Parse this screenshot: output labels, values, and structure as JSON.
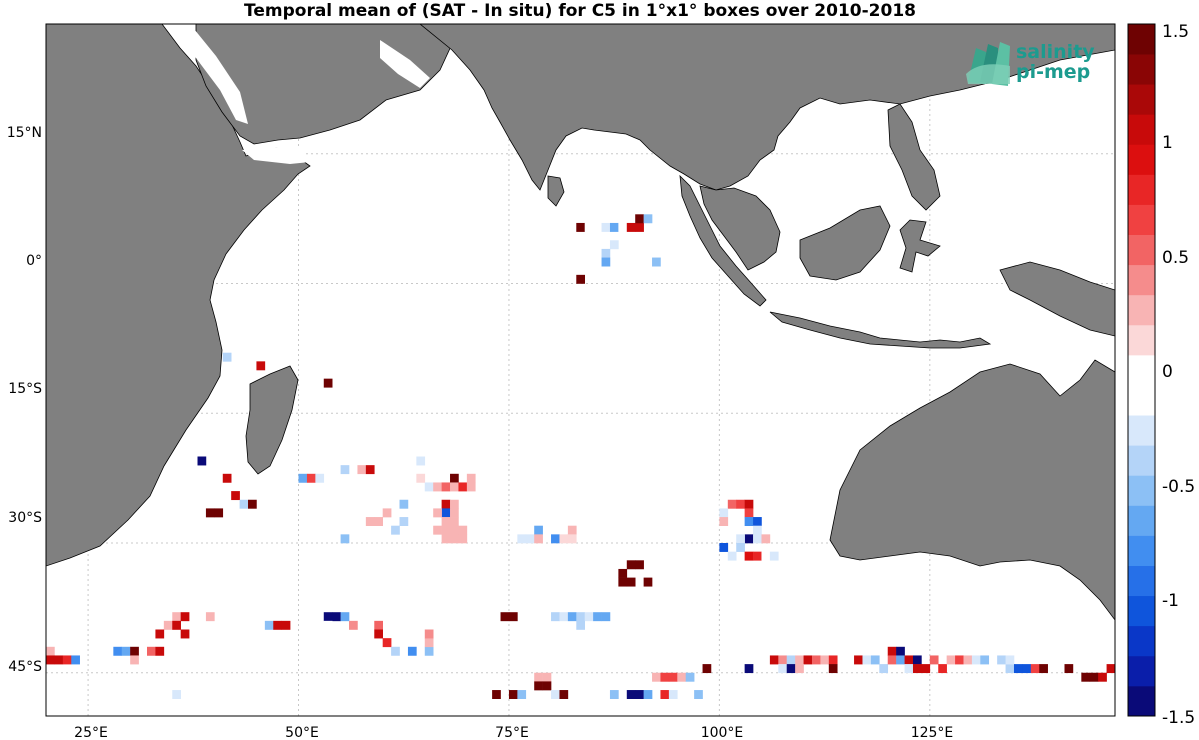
{
  "title": "Temporal mean of (SAT - In situ) for C5 in 1°x1° boxes over 2010-2018",
  "logo": {
    "line1": "salinity",
    "line2": "pi-mep"
  },
  "lon_ticks": [
    "25°E",
    "50°E",
    "75°E",
    "100°E",
    "125°E"
  ],
  "lat_ticks": [
    "15°N",
    "0°",
    "15°S",
    "30°S",
    "45°S"
  ],
  "colorbar": {
    "ticks": [
      "1.5",
      "1",
      "0.5",
      "0",
      "-0.5",
      "-1",
      "-1.5"
    ],
    "range": [
      -1.5,
      1.5
    ],
    "colors": [
      "#0a0a78",
      "#0a1eaa",
      "#0a37c8",
      "#0f55dc",
      "#2670e8",
      "#418ef0",
      "#64a8f2",
      "#8cc0f5",
      "#b4d4f8",
      "#d8e8fb",
      "#ffffff",
      "#ffffff",
      "#fbd8d8",
      "#f8b4b4",
      "#f58c8c",
      "#f26464",
      "#f04141",
      "#e82626",
      "#dc0f0f",
      "#c80a0a",
      "#aa0808",
      "#8a0505",
      "#6e0202"
    ]
  },
  "colors": {
    "land": "#808080",
    "coast": "#000000",
    "grid": "#c8c8c8"
  },
  "chart_data": {
    "type": "heatmap",
    "title": "Temporal mean of (SAT - In situ) for C5 in 1°x1° boxes over 2010-2018",
    "x_range": [
      20,
      147
    ],
    "y_range": [
      -50,
      30
    ],
    "grid": true,
    "cells": [
      [
        83,
        6,
        1.5
      ],
      [
        84,
        6,
        0.05
      ],
      [
        85,
        6,
        -0.1
      ],
      [
        86,
        6,
        -0.2
      ],
      [
        87,
        6,
        -0.7
      ],
      [
        88,
        6,
        -0.05
      ],
      [
        89,
        6,
        1.0
      ],
      [
        90,
        6,
        1.0
      ],
      [
        90,
        7,
        1.5
      ],
      [
        91,
        7,
        -0.5
      ],
      [
        87,
        4,
        -0.3
      ],
      [
        86,
        3,
        -0.4
      ],
      [
        86,
        2,
        -0.6
      ],
      [
        92,
        2,
        -0.5
      ],
      [
        83,
        0,
        1.5
      ],
      [
        41,
        -9,
        -0.4
      ],
      [
        45,
        -10,
        1.0
      ],
      [
        53,
        -12,
        1.5
      ],
      [
        38,
        -21,
        -1.5
      ],
      [
        41,
        -23,
        1.0
      ],
      [
        42,
        -25,
        1.0
      ],
      [
        39,
        -27,
        1.5
      ],
      [
        40,
        -27,
        1.5
      ],
      [
        43,
        -26,
        -0.4
      ],
      [
        44,
        -26,
        1.5
      ],
      [
        48,
        -23,
        -0.1
      ],
      [
        50,
        -23,
        -0.6
      ],
      [
        51,
        -23,
        0.7
      ],
      [
        52,
        -23,
        -0.2
      ],
      [
        55,
        -22,
        -0.4
      ],
      [
        57,
        -22,
        0.3
      ],
      [
        58,
        -22,
        1.0
      ],
      [
        60,
        -20,
        -0.1
      ],
      [
        61,
        -20,
        -0.1
      ],
      [
        64,
        -20,
        -0.1
      ],
      [
        64,
        -21,
        -0.2
      ],
      [
        64,
        -23,
        0.1
      ],
      [
        65,
        -24,
        -0.3
      ],
      [
        66,
        -24,
        0.3
      ],
      [
        67,
        -24,
        0.5
      ],
      [
        68,
        -23,
        1.5
      ],
      [
        68,
        -24,
        0.3
      ],
      [
        69,
        -24,
        0.8
      ],
      [
        70,
        -23,
        0.2
      ],
      [
        70,
        -24,
        0.2
      ],
      [
        67,
        -26,
        1.0
      ],
      [
        68,
        -26,
        0.3
      ],
      [
        67,
        -27,
        -1.0
      ],
      [
        66,
        -27,
        0.2
      ],
      [
        68,
        -27,
        0.2
      ],
      [
        67,
        -28,
        0.3
      ],
      [
        68,
        -28,
        0.3
      ],
      [
        66,
        -29,
        0.2
      ],
      [
        67,
        -29,
        0.2
      ],
      [
        68,
        -29,
        0.3
      ],
      [
        69,
        -29,
        0.2
      ],
      [
        62,
        -26,
        -0.5
      ],
      [
        58,
        -28,
        0.2
      ],
      [
        59,
        -28,
        0.2
      ],
      [
        60,
        -27,
        0.3
      ],
      [
        61,
        -29,
        -0.4
      ],
      [
        62,
        -28,
        -0.4
      ],
      [
        67,
        -30,
        0.2
      ],
      [
        68,
        -30,
        0.3
      ],
      [
        69,
        -30,
        0.3
      ],
      [
        55,
        -30,
        -0.5
      ],
      [
        76,
        -30,
        -0.2
      ],
      [
        77,
        -30,
        -0.2
      ],
      [
        78,
        -29,
        -0.6
      ],
      [
        78,
        -30,
        0.3
      ],
      [
        80,
        -30,
        -0.8
      ],
      [
        81,
        -30,
        0.1
      ],
      [
        82,
        -29,
        0.3
      ],
      [
        82,
        -30,
        0.1
      ],
      [
        89,
        -33,
        1.5
      ],
      [
        90,
        -33,
        1.5
      ],
      [
        88,
        -34,
        1.5
      ],
      [
        88,
        -35,
        1.5
      ],
      [
        89,
        -35,
        1.5
      ],
      [
        91,
        -35,
        1.5
      ],
      [
        100,
        -26,
        -0.1
      ],
      [
        101,
        -26,
        0.5
      ],
      [
        102,
        -26,
        0.7
      ],
      [
        103,
        -26,
        1.0
      ],
      [
        100,
        -27,
        -0.3
      ],
      [
        100,
        -28,
        0.2
      ],
      [
        103,
        -27,
        0.7
      ],
      [
        103,
        -28,
        -0.8
      ],
      [
        104,
        -28,
        -1.0
      ],
      [
        104,
        -29,
        -0.3
      ],
      [
        103,
        -30,
        -1.5
      ],
      [
        102,
        -30,
        -0.3
      ],
      [
        104,
        -30,
        -0.2
      ],
      [
        105,
        -30,
        0.3
      ],
      [
        100,
        -31,
        -1.0
      ],
      [
        102,
        -31,
        -0.4
      ],
      [
        101,
        -32,
        -0.2
      ],
      [
        103,
        -32,
        0.9
      ],
      [
        104,
        -32,
        0.8
      ],
      [
        105,
        -32,
        -0.1
      ],
      [
        106,
        -32,
        -0.2
      ],
      [
        35,
        -39,
        0.3
      ],
      [
        36,
        -39,
        1.0
      ],
      [
        39,
        -39,
        0.3
      ],
      [
        34,
        -40,
        0.3
      ],
      [
        35,
        -40,
        1.0
      ],
      [
        36,
        -41,
        1.0
      ],
      [
        33,
        -41,
        1.0
      ],
      [
        46,
        -40,
        -0.5
      ],
      [
        47,
        -40,
        1.0
      ],
      [
        48,
        -40,
        1.0
      ],
      [
        53,
        -39,
        -1.5
      ],
      [
        54,
        -39,
        -1.5
      ],
      [
        55,
        -39,
        -0.6
      ],
      [
        53,
        -40,
        -0.1
      ],
      [
        56,
        -40,
        0.4
      ],
      [
        59,
        -40,
        0.5
      ],
      [
        59,
        -41,
        1.0
      ],
      [
        60,
        -42,
        0.8
      ],
      [
        61,
        -43,
        -0.4
      ],
      [
        63,
        -43,
        -0.8
      ],
      [
        65,
        -43,
        -0.5
      ],
      [
        65,
        -42,
        0.3
      ],
      [
        65,
        -41,
        0.4
      ],
      [
        74,
        -39,
        1.5
      ],
      [
        75,
        -39,
        1.5
      ],
      [
        79,
        -39,
        -0.05
      ],
      [
        80,
        -39,
        -0.4
      ],
      [
        81,
        -39,
        -0.2
      ],
      [
        82,
        -39,
        -0.6
      ],
      [
        83,
        -39,
        -0.4
      ],
      [
        84,
        -39,
        -0.3
      ],
      [
        85,
        -39,
        -0.6
      ],
      [
        86,
        -39,
        -0.6
      ],
      [
        83,
        -40,
        -0.4
      ],
      [
        20,
        -43,
        0.3
      ],
      [
        20,
        -44,
        1.0
      ],
      [
        21,
        -44,
        1.0
      ],
      [
        22,
        -44,
        0.8
      ],
      [
        23,
        -44,
        -0.8
      ],
      [
        28,
        -43,
        -0.8
      ],
      [
        29,
        -43,
        -0.7
      ],
      [
        30,
        -43,
        1.5
      ],
      [
        30,
        -44,
        0.3
      ],
      [
        32,
        -43,
        0.5
      ],
      [
        33,
        -43,
        1.0
      ],
      [
        35,
        -48,
        -0.3
      ],
      [
        78,
        -46,
        0.3
      ],
      [
        79,
        -46,
        0.3
      ],
      [
        78,
        -47,
        1.5
      ],
      [
        79,
        -47,
        1.5
      ],
      [
        73,
        -48,
        1.5
      ],
      [
        75,
        -48,
        1.5
      ],
      [
        76,
        -48,
        -0.5
      ],
      [
        80,
        -48,
        -0.2
      ],
      [
        81,
        -48,
        1.5
      ],
      [
        84,
        -48,
        0.05
      ],
      [
        86,
        -48,
        -0.05
      ],
      [
        87,
        -48,
        -0.5
      ],
      [
        89,
        -48,
        -1.5
      ],
      [
        90,
        -48,
        -1.5
      ],
      [
        91,
        -48,
        -0.6
      ],
      [
        93,
        -48,
        0.8
      ],
      [
        94,
        -48,
        -0.3
      ],
      [
        92,
        -46,
        0.3
      ],
      [
        93,
        -46,
        0.7
      ],
      [
        94,
        -46,
        0.6
      ],
      [
        95,
        -46,
        0.3
      ],
      [
        96,
        -46,
        -0.5
      ],
      [
        97,
        -48,
        -0.5
      ],
      [
        98,
        -45,
        1.5
      ],
      [
        103,
        -45,
        -1.5
      ],
      [
        106,
        -44,
        1.0
      ],
      [
        107,
        -44,
        0.4
      ],
      [
        108,
        -44,
        -0.4
      ],
      [
        109,
        -44,
        0.3
      ],
      [
        110,
        -44,
        1.0
      ],
      [
        111,
        -44,
        0.5
      ],
      [
        112,
        -44,
        0.3
      ],
      [
        113,
        -44,
        0.8
      ],
      [
        107,
        -45,
        -0.3
      ],
      [
        108,
        -45,
        -1.5
      ],
      [
        109,
        -45,
        0.3
      ],
      [
        113,
        -45,
        1.5
      ],
      [
        116,
        -44,
        1.0
      ],
      [
        117,
        -44,
        -0.3
      ],
      [
        118,
        -44,
        -0.5
      ],
      [
        119,
        -45,
        -0.4
      ],
      [
        120,
        -43,
        1.0
      ],
      [
        121,
        -43,
        -1.5
      ],
      [
        120,
        -44,
        0.5
      ],
      [
        121,
        -44,
        -0.6
      ],
      [
        122,
        -44,
        1.0
      ],
      [
        122,
        -45,
        -0.3
      ],
      [
        123,
        -44,
        -1.5
      ],
      [
        123,
        -45,
        1.0
      ],
      [
        124,
        -45,
        1.0
      ],
      [
        125,
        -44,
        0.5
      ],
      [
        126,
        -45,
        0.8
      ],
      [
        127,
        -44,
        0.2
      ],
      [
        128,
        -44,
        0.6
      ],
      [
        129,
        -44,
        0.3
      ],
      [
        130,
        -44,
        -0.2
      ],
      [
        131,
        -44,
        -0.5
      ],
      [
        133,
        -44,
        -0.4
      ],
      [
        134,
        -45,
        -0.4
      ],
      [
        134,
        -44,
        -0.2
      ],
      [
        135,
        -45,
        -1.0
      ],
      [
        136,
        -45,
        -1.0
      ],
      [
        137,
        -45,
        0.6
      ],
      [
        138,
        -45,
        1.5
      ],
      [
        141,
        -45,
        1.5
      ],
      [
        143,
        -46,
        1.5
      ],
      [
        144,
        -46,
        1.5
      ],
      [
        145,
        -46,
        1.0
      ],
      [
        146,
        -45,
        1.0
      ]
    ]
  }
}
